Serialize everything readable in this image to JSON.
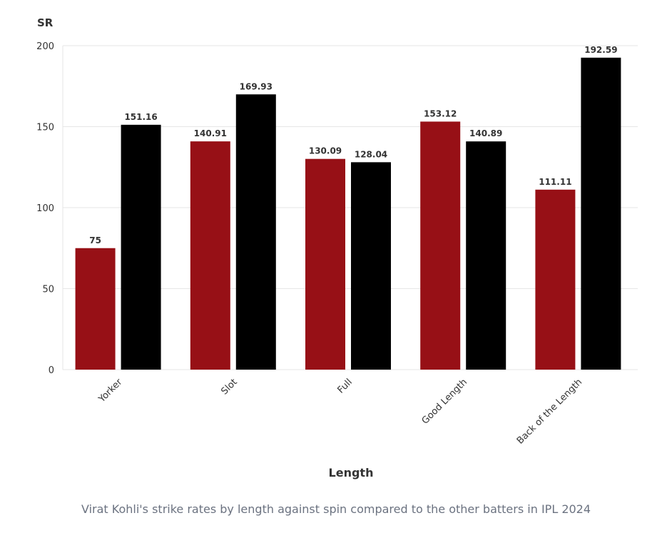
{
  "chart_data": {
    "type": "bar",
    "title": "",
    "xlabel": "Length",
    "ylabel": "SR",
    "ylim": [
      0,
      200
    ],
    "yticks": [
      0,
      50,
      100,
      150,
      200
    ],
    "grid": true,
    "legend": "none",
    "categories": [
      "Yorker",
      "Slot",
      "Full",
      "Good Length",
      "Back of the Length"
    ],
    "series": [
      {
        "color": "#971016",
        "values": [
          75,
          140.91,
          130.09,
          153.12,
          111.11
        ],
        "labels": [
          "75",
          "140.91",
          "130.09",
          "153.12",
          "111.11"
        ]
      },
      {
        "color": "#000000",
        "values": [
          151.16,
          169.93,
          128.04,
          140.89,
          192.59
        ],
        "labels": [
          "151.16",
          "169.93",
          "128.04",
          "140.89",
          "192.59"
        ]
      }
    ]
  },
  "caption": "Virat Kohli's strike rates by length against spin compared to the other batters in IPL 2024"
}
